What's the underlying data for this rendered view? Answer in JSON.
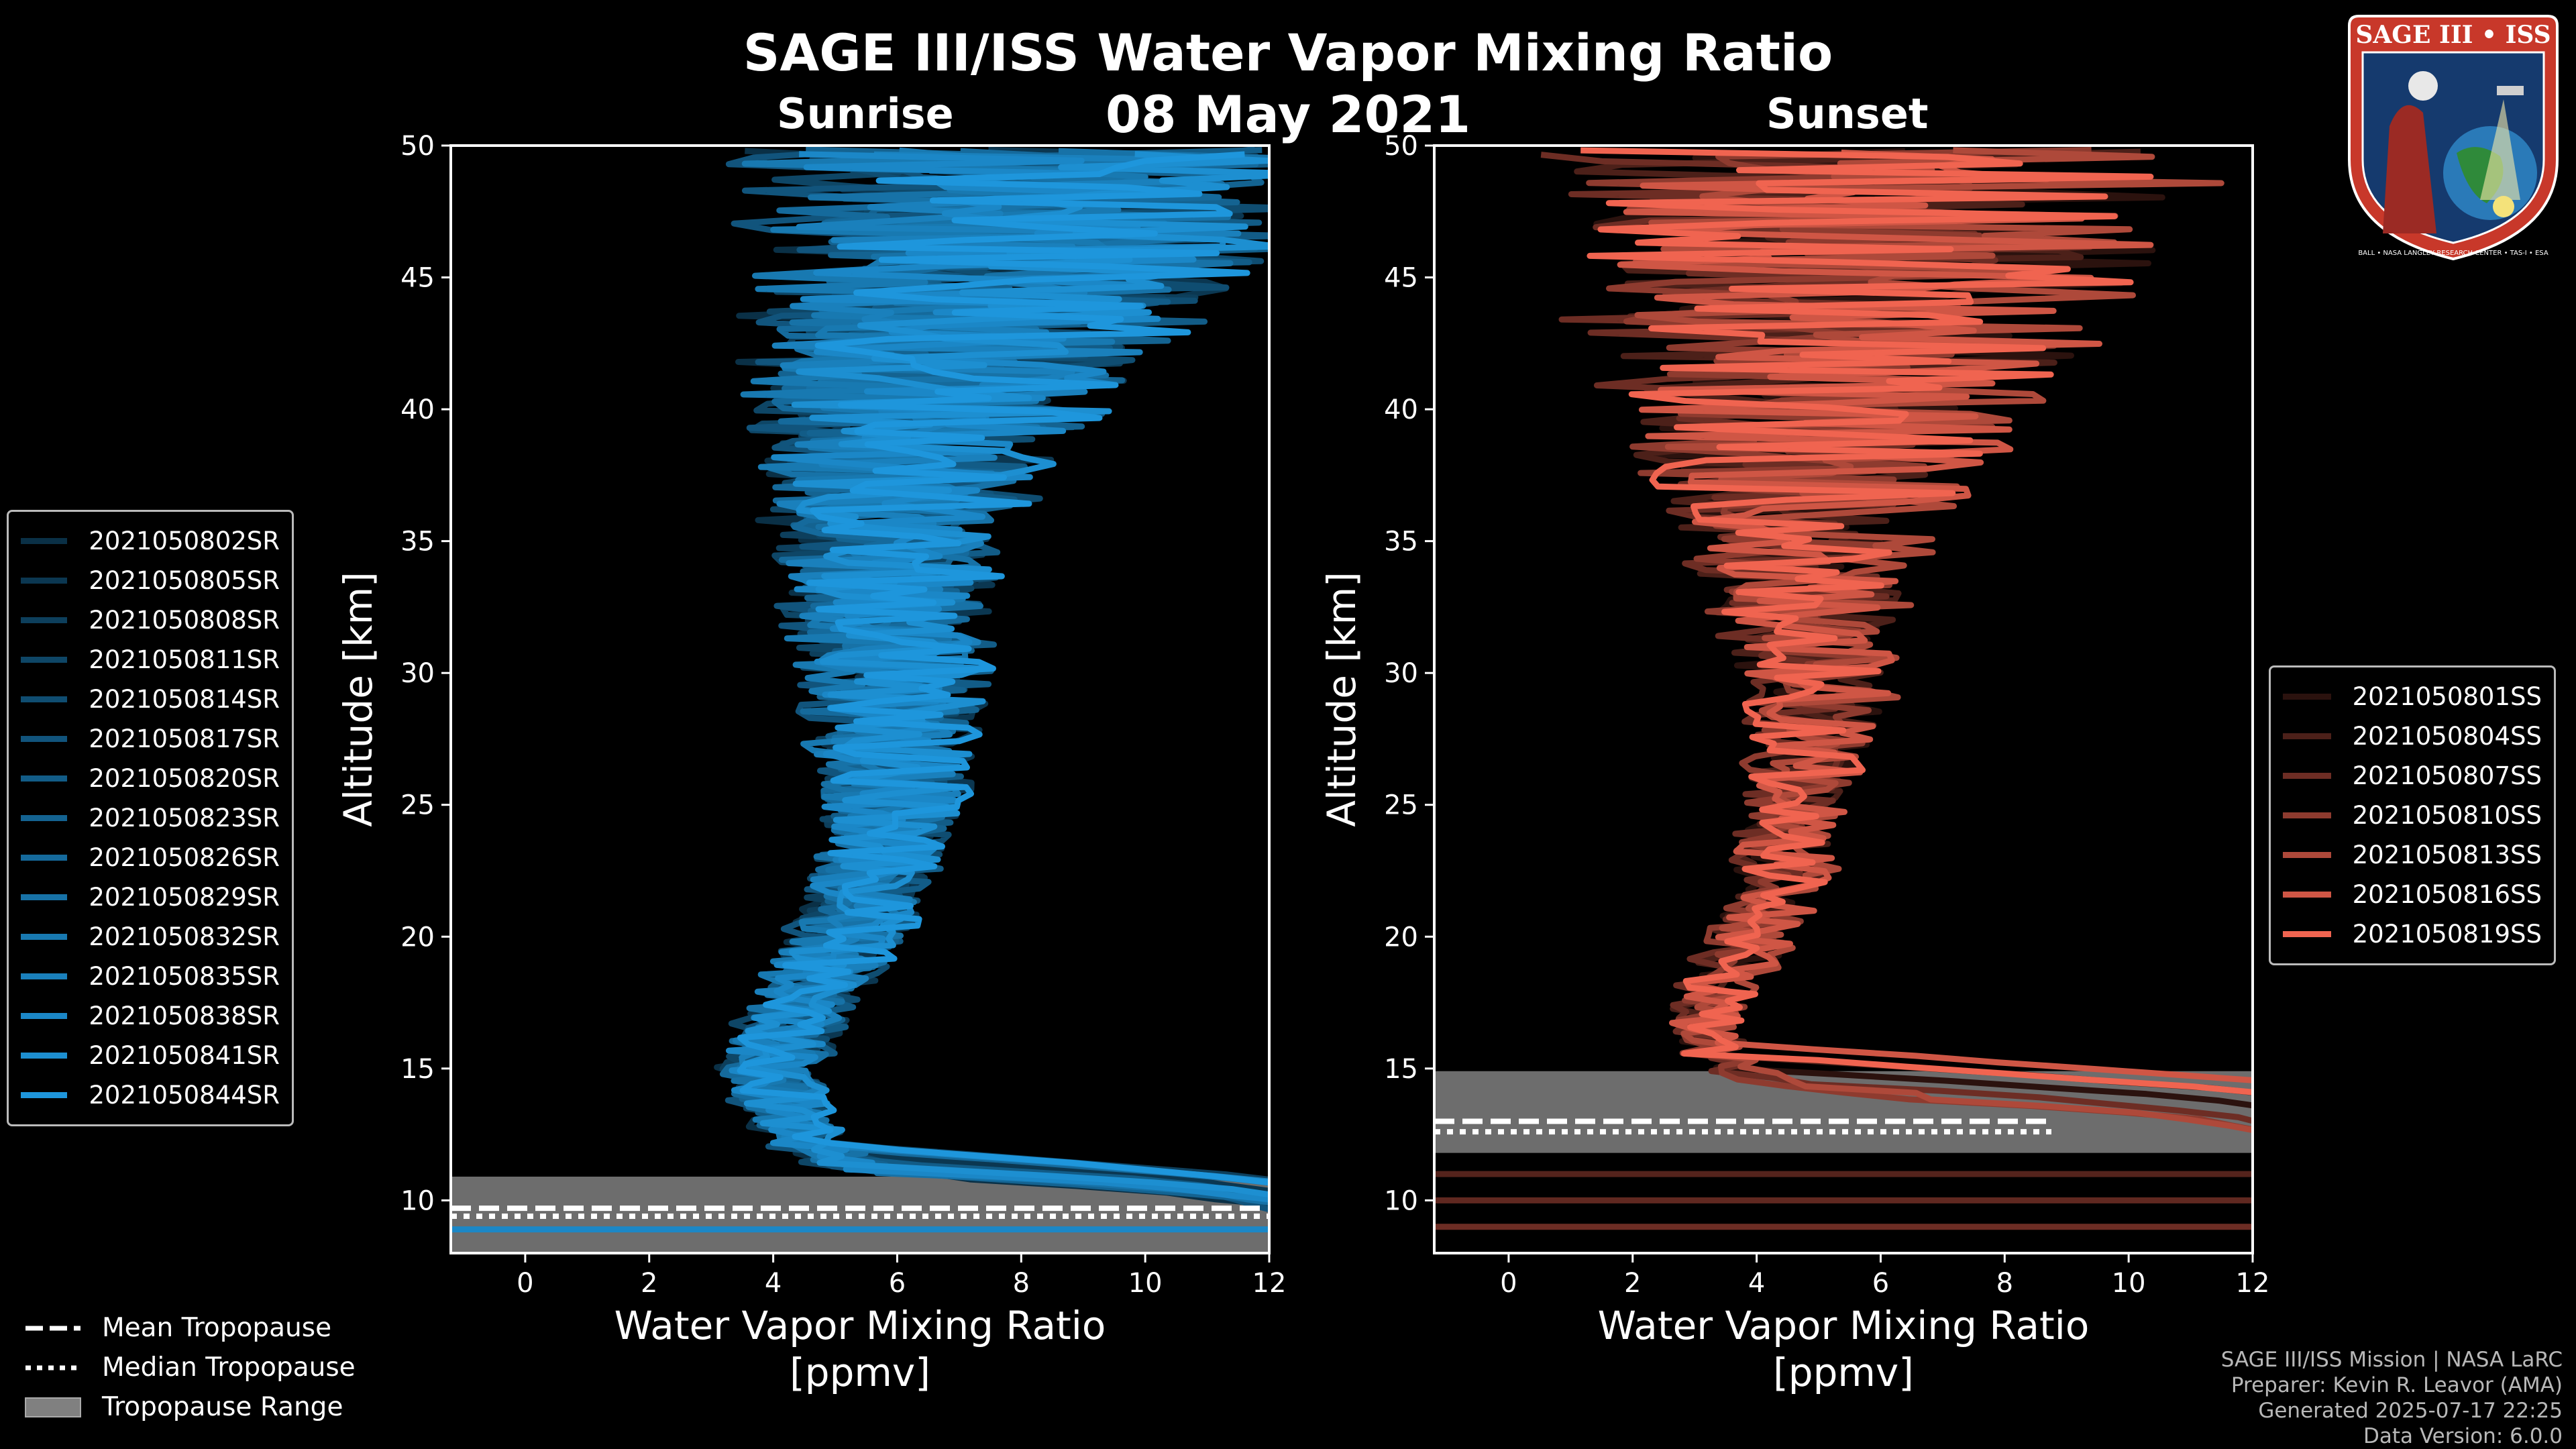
{
  "title": "SAGE III/ISS Water Vapor Mixing Ratio",
  "date": "08 May 2021",
  "logo": {
    "text": "SAGE III • ISS",
    "ring_text": "BALL • NASA LANGLEY RESEARCH CENTER • TAS-I • ESA"
  },
  "colors": {
    "sunrise": "#1e96dc",
    "sunset": "#f06450",
    "tropopause_fill": "#808080",
    "background": "#000000"
  },
  "panels": {
    "sunrise": {
      "label": "Sunrise"
    },
    "sunset": {
      "label": "Sunset"
    }
  },
  "chart_data": [
    {
      "type": "line",
      "title": "Sunrise",
      "xlabel": "Water Vapor Mixing Ratio\n[ppmv]",
      "ylabel": "Altitude [km]",
      "xlim": [
        -1.2,
        12
      ],
      "ylim": [
        8,
        50
      ],
      "xticks": [
        0,
        2,
        4,
        6,
        8,
        10,
        12
      ],
      "yticks": [
        10,
        15,
        20,
        25,
        30,
        35,
        40,
        45,
        50
      ],
      "series_names": [
        "2021050802SR",
        "2021050805SR",
        "2021050808SR",
        "2021050811SR",
        "2021050814SR",
        "2021050817SR",
        "2021050820SR",
        "2021050823SR",
        "2021050826SR",
        "2021050829SR",
        "2021050832SR",
        "2021050835SR",
        "2021050838SR",
        "2021050841SR",
        "2021050844SR"
      ],
      "mean_profile": [
        [
          12,
          9.8
        ],
        [
          8,
          10.6
        ],
        [
          5.5,
          11.2
        ],
        [
          4.6,
          12
        ],
        [
          4.3,
          13
        ],
        [
          4.1,
          14
        ],
        [
          4.0,
          15
        ],
        [
          4.1,
          16
        ],
        [
          4.3,
          17
        ],
        [
          4.6,
          18
        ],
        [
          4.9,
          19
        ],
        [
          5.2,
          20
        ],
        [
          5.4,
          21
        ],
        [
          5.6,
          22
        ],
        [
          5.7,
          23
        ],
        [
          5.8,
          24
        ],
        [
          5.9,
          25
        ],
        [
          5.9,
          26
        ],
        [
          5.9,
          27
        ],
        [
          5.9,
          28
        ],
        [
          5.9,
          29
        ],
        [
          5.9,
          30
        ],
        [
          5.9,
          31
        ],
        [
          5.9,
          32
        ],
        [
          5.8,
          33
        ],
        [
          5.8,
          34
        ],
        [
          5.8,
          35
        ],
        [
          5.9,
          36
        ],
        [
          6.0,
          37
        ],
        [
          6.1,
          38
        ],
        [
          6.3,
          39
        ],
        [
          6.5,
          40
        ],
        [
          6.7,
          41
        ],
        [
          7.0,
          42
        ],
        [
          7.2,
          43
        ],
        [
          7.5,
          44
        ],
        [
          7.7,
          45
        ],
        [
          7.9,
          46
        ],
        [
          8.0,
          47
        ],
        [
          8.1,
          48
        ],
        [
          8.2,
          49
        ],
        [
          8.2,
          49.8
        ]
      ],
      "spread": [
        [
          9,
          1.3
        ],
        [
          12,
          0.6
        ],
        [
          15,
          0.8
        ],
        [
          20,
          0.9
        ],
        [
          25,
          1.1
        ],
        [
          30,
          1.4
        ],
        [
          35,
          1.7
        ],
        [
          40,
          2.6
        ],
        [
          45,
          3.6
        ],
        [
          50,
          4.2
        ]
      ],
      "tropopause": {
        "range_km": [
          8.0,
          10.9
        ],
        "mean_km": 9.7,
        "median_km": 9.4,
        "lowest_km": 8.9
      }
    },
    {
      "type": "line",
      "title": "Sunset",
      "xlabel": "Water Vapor Mixing Ratio\n[ppmv]",
      "ylabel": "Altitude [km]",
      "xlim": [
        -1.2,
        12
      ],
      "ylim": [
        8,
        50
      ],
      "xticks": [
        0,
        2,
        4,
        6,
        8,
        10,
        12
      ],
      "yticks": [
        10,
        15,
        20,
        25,
        30,
        35,
        40,
        45,
        50
      ],
      "series_names": [
        "2021050801SS",
        "2021050804SS",
        "2021050807SS",
        "2021050810SS",
        "2021050813SS",
        "2021050816SS",
        "2021050819SS"
      ],
      "mean_profile": [
        [
          12,
          12.5
        ],
        [
          7,
          13.8
        ],
        [
          4.2,
          14.6
        ],
        [
          3.4,
          15.5
        ],
        [
          3.2,
          16.5
        ],
        [
          3.3,
          17.5
        ],
        [
          3.5,
          18.5
        ],
        [
          3.8,
          19.5
        ],
        [
          4.1,
          20.5
        ],
        [
          4.3,
          21.5
        ],
        [
          4.4,
          22.5
        ],
        [
          4.5,
          23.5
        ],
        [
          4.6,
          24.5
        ],
        [
          4.7,
          25.5
        ],
        [
          4.8,
          26.5
        ],
        [
          4.9,
          27.5
        ],
        [
          5.0,
          28.5
        ],
        [
          5.0,
          29.5
        ],
        [
          4.9,
          30.5
        ],
        [
          4.9,
          31.5
        ],
        [
          4.9,
          32.5
        ],
        [
          4.9,
          33.5
        ],
        [
          4.9,
          34.5
        ],
        [
          4.9,
          35.5
        ],
        [
          5.0,
          36.5
        ],
        [
          5.0,
          37.5
        ],
        [
          5.1,
          38.5
        ],
        [
          5.2,
          39.5
        ],
        [
          5.3,
          40.5
        ],
        [
          5.4,
          41.5
        ],
        [
          5.6,
          42.5
        ],
        [
          5.7,
          43.5
        ],
        [
          5.9,
          44.5
        ],
        [
          6.0,
          45.5
        ],
        [
          6.1,
          46.5
        ],
        [
          6.2,
          47.5
        ],
        [
          6.3,
          48.5
        ],
        [
          6.3,
          49.8
        ]
      ],
      "spread": [
        [
          12,
          0.6
        ],
        [
          15,
          0.6
        ],
        [
          20,
          0.7
        ],
        [
          25,
          0.9
        ],
        [
          30,
          1.2
        ],
        [
          35,
          1.9
        ],
        [
          40,
          3.4
        ],
        [
          45,
          4.6
        ],
        [
          50,
          5.0
        ]
      ],
      "tropopause": {
        "range_km": [
          11.8,
          14.9
        ],
        "mean_km": 13.0,
        "median_km": 12.6,
        "lowest_km": 12.2
      }
    }
  ],
  "tropopause_legend": [
    {
      "label": "Mean Tropopause",
      "style": "dashed"
    },
    {
      "label": "Median Tropopause",
      "style": "dotted"
    },
    {
      "label": "Tropopause Range",
      "style": "fill"
    }
  ],
  "credits": [
    "SAGE III/ISS Mission | NASA LaRC",
    "Preparer: Kevin R. Leavor (AMA)",
    "Generated 2025-07-17 22:25",
    "Data Version: 6.0.0"
  ]
}
